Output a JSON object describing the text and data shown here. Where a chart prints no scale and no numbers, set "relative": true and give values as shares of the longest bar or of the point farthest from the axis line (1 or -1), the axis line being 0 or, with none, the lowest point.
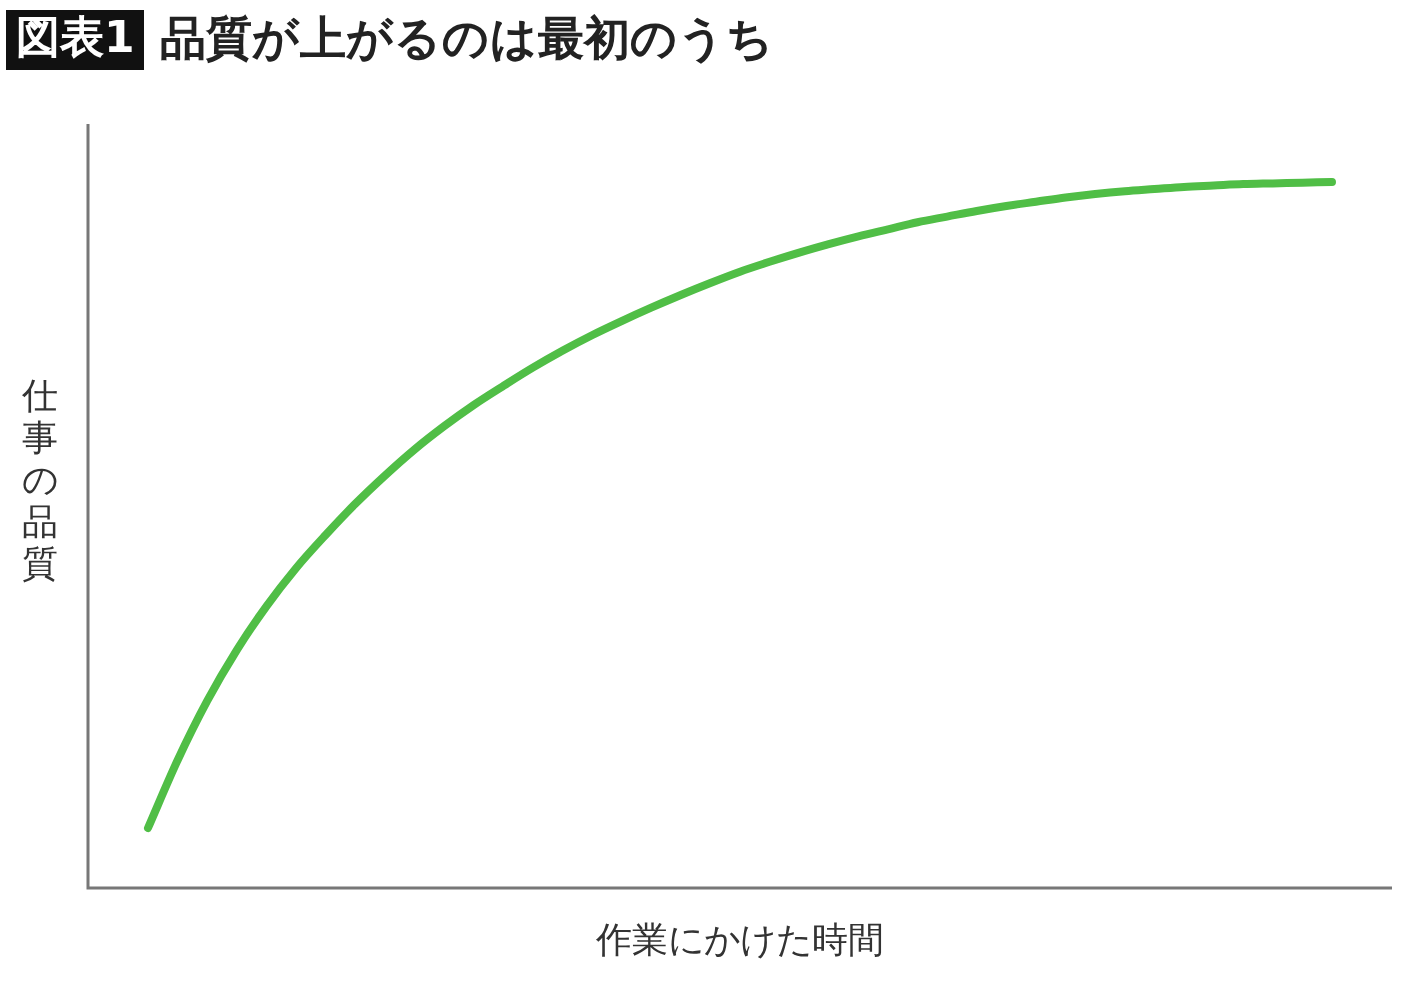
{
  "chart_data": {
    "type": "line",
    "title": "品質が上がるのは最初のうち",
    "annotations": [
      "図表1"
    ],
    "xlabel": "作業にかけた時間",
    "ylabel": "仕事の品質",
    "relative": true,
    "categories": [
      null,
      null,
      null,
      null,
      null,
      null,
      null,
      null,
      null,
      null,
      null,
      null,
      null,
      null,
      null,
      null,
      null,
      null,
      null,
      null,
      null,
      null,
      null,
      null,
      null,
      null,
      null,
      null,
      null,
      null,
      null,
      null,
      null,
      null,
      null,
      null,
      null,
      null,
      null,
      null,
      null
    ],
    "series": [
      {
        "color": "#50be46",
        "values": [
          0.085,
          0.181,
          0.265,
          0.337,
          0.399,
          0.453,
          0.5,
          0.544,
          0.584,
          0.621,
          0.654,
          0.684,
          0.711,
          0.737,
          0.761,
          0.783,
          0.803,
          0.822,
          0.84,
          0.857,
          0.873,
          0.887,
          0.9,
          0.912,
          0.923,
          0.933,
          0.943,
          0.951,
          0.959,
          0.966,
          0.972,
          0.978,
          0.983,
          0.987,
          0.99,
          0.993,
          0.995,
          0.997,
          0.998,
          0.999,
          1.0
        ]
      }
    ],
    "marker": "none",
    "grid": false
  }
}
